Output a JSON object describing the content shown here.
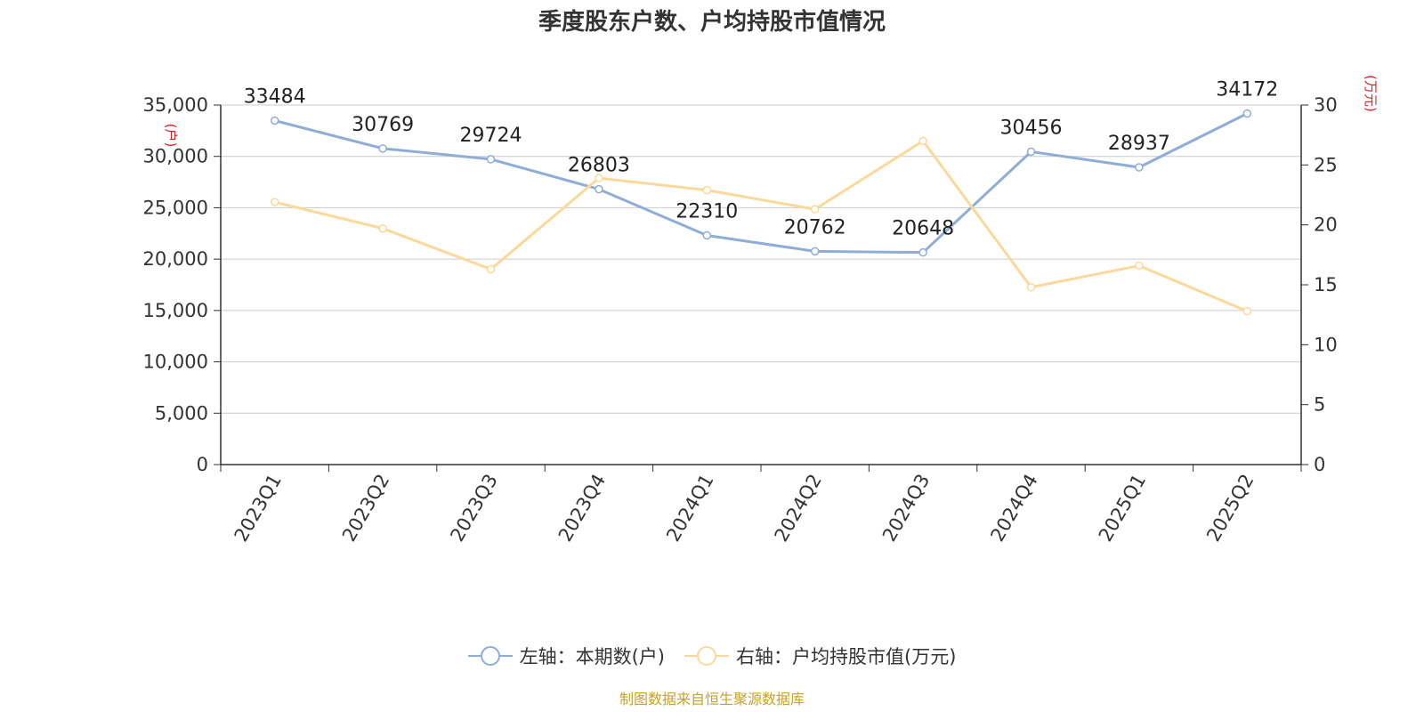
{
  "chart_data": {
    "type": "line",
    "title": "季度股东户数、户均持股市值情况",
    "categories": [
      "2023Q1",
      "2023Q2",
      "2023Q3",
      "2023Q4",
      "2024Q1",
      "2024Q2",
      "2024Q3",
      "2024Q4",
      "2025Q1",
      "2025Q2"
    ],
    "left_axis": {
      "unit_label": "(户)",
      "ylim": [
        0,
        35000
      ],
      "ticks": [
        "0",
        "5,000",
        "10,000",
        "15,000",
        "20,000",
        "25,000",
        "30,000",
        "35,000"
      ]
    },
    "right_axis": {
      "unit_label": "(万元)",
      "ylim": [
        0,
        30
      ],
      "ticks": [
        "0",
        "5",
        "10",
        "15",
        "20",
        "25",
        "30"
      ]
    },
    "series": [
      {
        "name": "左轴：本期数(户)",
        "axis": "left",
        "color": "#8eaed8",
        "values": [
          33484,
          30769,
          29724,
          26803,
          22310,
          20762,
          20648,
          30456,
          28937,
          34172
        ],
        "labels": [
          "33484",
          "30769",
          "29724",
          "26803",
          "22310",
          "20762",
          "20648",
          "30456",
          "28937",
          "34172"
        ]
      },
      {
        "name": "右轴：户均持股市值(万元)",
        "axis": "right",
        "color": "#fcd99a",
        "values": [
          21.9,
          19.7,
          16.3,
          23.9,
          22.9,
          21.3,
          27.0,
          14.8,
          16.6,
          12.8
        ]
      }
    ],
    "grid": true,
    "legend_position": "bottom-center"
  },
  "source_note": "制图数据来自恒生聚源数据库"
}
